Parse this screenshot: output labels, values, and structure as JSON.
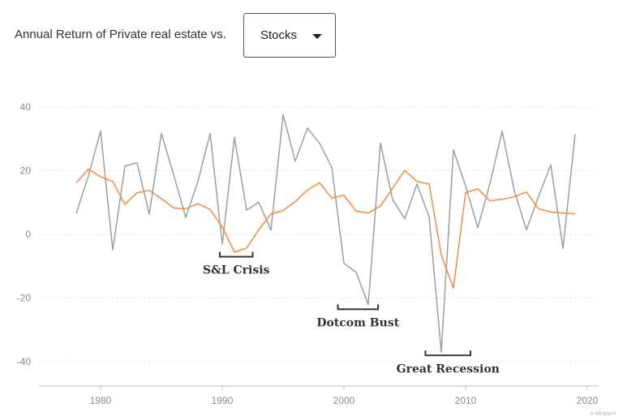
{
  "header": {
    "prefix": "Annual Return of Private real estate vs."
  },
  "dropdown": {
    "selected": "Stocks",
    "icon": "caret-down-icon"
  },
  "credit": "a Wrapper",
  "colors": {
    "real_estate": "#f58a3c",
    "stocks": "#9e9e9e",
    "grid": "#e3e3e3",
    "axis": "#bdbdbd",
    "annotation": "#333333"
  },
  "chart_data": {
    "type": "line",
    "x": [
      1978,
      1979,
      1980,
      1981,
      1982,
      1983,
      1984,
      1985,
      1986,
      1987,
      1988,
      1989,
      1990,
      1991,
      1992,
      1993,
      1994,
      1995,
      1996,
      1997,
      1998,
      1999,
      2000,
      2001,
      2002,
      2003,
      2004,
      2005,
      2006,
      2007,
      2008,
      2009,
      2010,
      2011,
      2012,
      2013,
      2014,
      2015,
      2016,
      2017,
      2018,
      2019
    ],
    "series": [
      {
        "name": "Private real estate",
        "color": "#f58a3c",
        "values": [
          16.1,
          20.5,
          18.1,
          16.6,
          9.4,
          13.1,
          13.8,
          11.2,
          8.3,
          8.0,
          9.6,
          7.8,
          2.3,
          -5.6,
          -4.3,
          1.4,
          6.4,
          7.5,
          10.3,
          13.9,
          16.2,
          11.4,
          12.3,
          7.3,
          6.7,
          8.9,
          14.5,
          20.1,
          16.6,
          15.8,
          -6.5,
          -16.9,
          13.1,
          14.3,
          10.5,
          11.0,
          11.8,
          13.3,
          8.0,
          7.0,
          6.7,
          6.4
        ]
      },
      {
        "name": "Stocks",
        "color": "#9e9e9e",
        "values": [
          6.6,
          18.4,
          32.4,
          -4.9,
          21.4,
          22.5,
          6.3,
          31.7,
          18.7,
          5.3,
          16.6,
          31.7,
          -3.1,
          30.5,
          7.6,
          10.1,
          1.3,
          37.6,
          23.0,
          33.4,
          28.6,
          21.0,
          -9.1,
          -11.9,
          -22.1,
          28.7,
          10.9,
          4.9,
          15.8,
          5.5,
          -37.0,
          26.5,
          15.1,
          2.1,
          16.0,
          32.4,
          13.7,
          1.4,
          12.0,
          21.8,
          -4.4,
          31.5
        ]
      }
    ],
    "xlim": [
      1975,
      2020
    ],
    "ylim": [
      -47,
      42
    ],
    "xticks": [
      1980,
      1990,
      2000,
      2010,
      2020
    ],
    "yticks": [
      40,
      20,
      0,
      -20,
      -40
    ],
    "grid": "horizontal dotted",
    "annotations": [
      {
        "label": "S&L Crisis",
        "x_start": 1989.8,
        "x_end": 1992.5,
        "y": -5.5
      },
      {
        "label": "Dotcom Bust",
        "x_start": 1999.5,
        "x_end": 2002.8,
        "y": -22
      },
      {
        "label": "Great Recession",
        "x_start": 2006.7,
        "x_end": 2010.4,
        "y": -36.5
      }
    ]
  }
}
